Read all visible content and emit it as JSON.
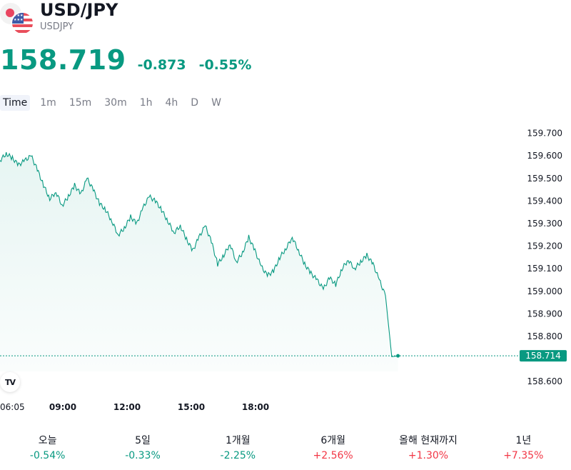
{
  "header": {
    "title": "USD/JPY",
    "subtitle": "USDJPY"
  },
  "quote": {
    "price": "158.719",
    "change": "-0.873",
    "change_percent": "-0.55%",
    "color": "#089981"
  },
  "timeframes": [
    {
      "label": "Time",
      "active": true
    },
    {
      "label": "1m",
      "active": false
    },
    {
      "label": "15m",
      "active": false
    },
    {
      "label": "30m",
      "active": false
    },
    {
      "label": "1h",
      "active": false
    },
    {
      "label": "4h",
      "active": false
    },
    {
      "label": "D",
      "active": false
    },
    {
      "label": "W",
      "active": false
    }
  ],
  "chart_data": {
    "type": "area",
    "line_color": "#089981",
    "yticks": [
      "159.700",
      "159.600",
      "159.500",
      "159.400",
      "159.300",
      "159.200",
      "159.100",
      "159.000",
      "158.900",
      "158.800",
      "158.600"
    ],
    "ylim": [
      158.55,
      159.74
    ],
    "xticks": [
      "06:05",
      "09:00",
      "12:00",
      "15:00",
      "18:00"
    ],
    "last_price_label": "158.714",
    "grid": false,
    "x": [
      0,
      0.5,
      1,
      1.5,
      2,
      2.5,
      3,
      3.5,
      4,
      4.5,
      5,
      5.5,
      6,
      6.5,
      7,
      7.5,
      8,
      8.5,
      9,
      9.5,
      10,
      10.5,
      11,
      11.5,
      12,
      12.5,
      13,
      13.5,
      14,
      14.5,
      15,
      15.5,
      16,
      16.5,
      17,
      17.5,
      18,
      18.5,
      19,
      19.5,
      20,
      20.5,
      21,
      21.5,
      22,
      22.5,
      23,
      23.5,
      24,
      24.5,
      25,
      25.5,
      26,
      26.5,
      27,
      27.5,
      28,
      28.5,
      29,
      29.5,
      30,
      30.5,
      31,
      31.5,
      32,
      32.5,
      33,
      33.5,
      34,
      34.5,
      35,
      35.5,
      36,
      36.5,
      37,
      37.5,
      38,
      38.5,
      39,
      39.5,
      40,
      40.5,
      41,
      41.5,
      42,
      42.5,
      43,
      43.5,
      44,
      44.5,
      45,
      45.5,
      46,
      46.5,
      47,
      47.5,
      48,
      48.5,
      49,
      49.5
    ],
    "values": [
      159.58,
      159.61,
      159.59,
      159.56,
      159.58,
      159.6,
      159.54,
      159.47,
      159.41,
      159.44,
      159.38,
      159.42,
      159.47,
      159.43,
      159.5,
      159.45,
      159.39,
      159.36,
      159.31,
      159.25,
      159.28,
      159.33,
      159.3,
      159.37,
      159.42,
      159.4,
      159.36,
      159.31,
      159.26,
      159.29,
      159.23,
      159.18,
      159.24,
      159.29,
      159.22,
      159.12,
      159.16,
      159.21,
      159.13,
      159.17,
      159.24,
      159.18,
      159.11,
      159.07,
      159.09,
      159.15,
      159.19,
      159.24,
      159.18,
      159.12,
      159.08,
      159.05,
      159.01,
      159.06,
      159.03,
      159.1,
      159.14,
      159.1,
      159.13,
      159.16,
      159.12,
      159.05,
      158.98,
      158.71,
      158.714,
      158.714,
      158.714,
      158.714,
      158.714,
      158.714,
      158.714,
      158.714,
      158.714,
      158.714,
      158.714,
      158.714,
      158.714,
      158.714,
      158.714,
      158.714,
      158.714,
      158.714,
      158.714,
      158.714,
      158.714,
      158.714,
      158.714,
      158.714,
      158.714,
      158.714,
      158.714,
      158.714,
      158.714,
      158.714,
      158.714,
      158.714,
      158.714,
      158.714,
      158.714,
      158.714
    ],
    "values_visible_count": 65
  },
  "performance": [
    {
      "label": "오늘",
      "value": "-0.54%",
      "direction": "neg"
    },
    {
      "label": "5일",
      "value": "-0.33%",
      "direction": "neg"
    },
    {
      "label": "1개월",
      "value": "-2.25%",
      "direction": "neg"
    },
    {
      "label": "6개월",
      "value": "+2.56%",
      "direction": "pos"
    },
    {
      "label": "올해 현재까지",
      "value": "+1.30%",
      "direction": "pos"
    },
    {
      "label": "1년",
      "value": "+7.35%",
      "direction": "pos"
    }
  ],
  "colors": {
    "down": "#089981",
    "up": "#f23645",
    "text": "#131722",
    "muted": "#787b86"
  }
}
